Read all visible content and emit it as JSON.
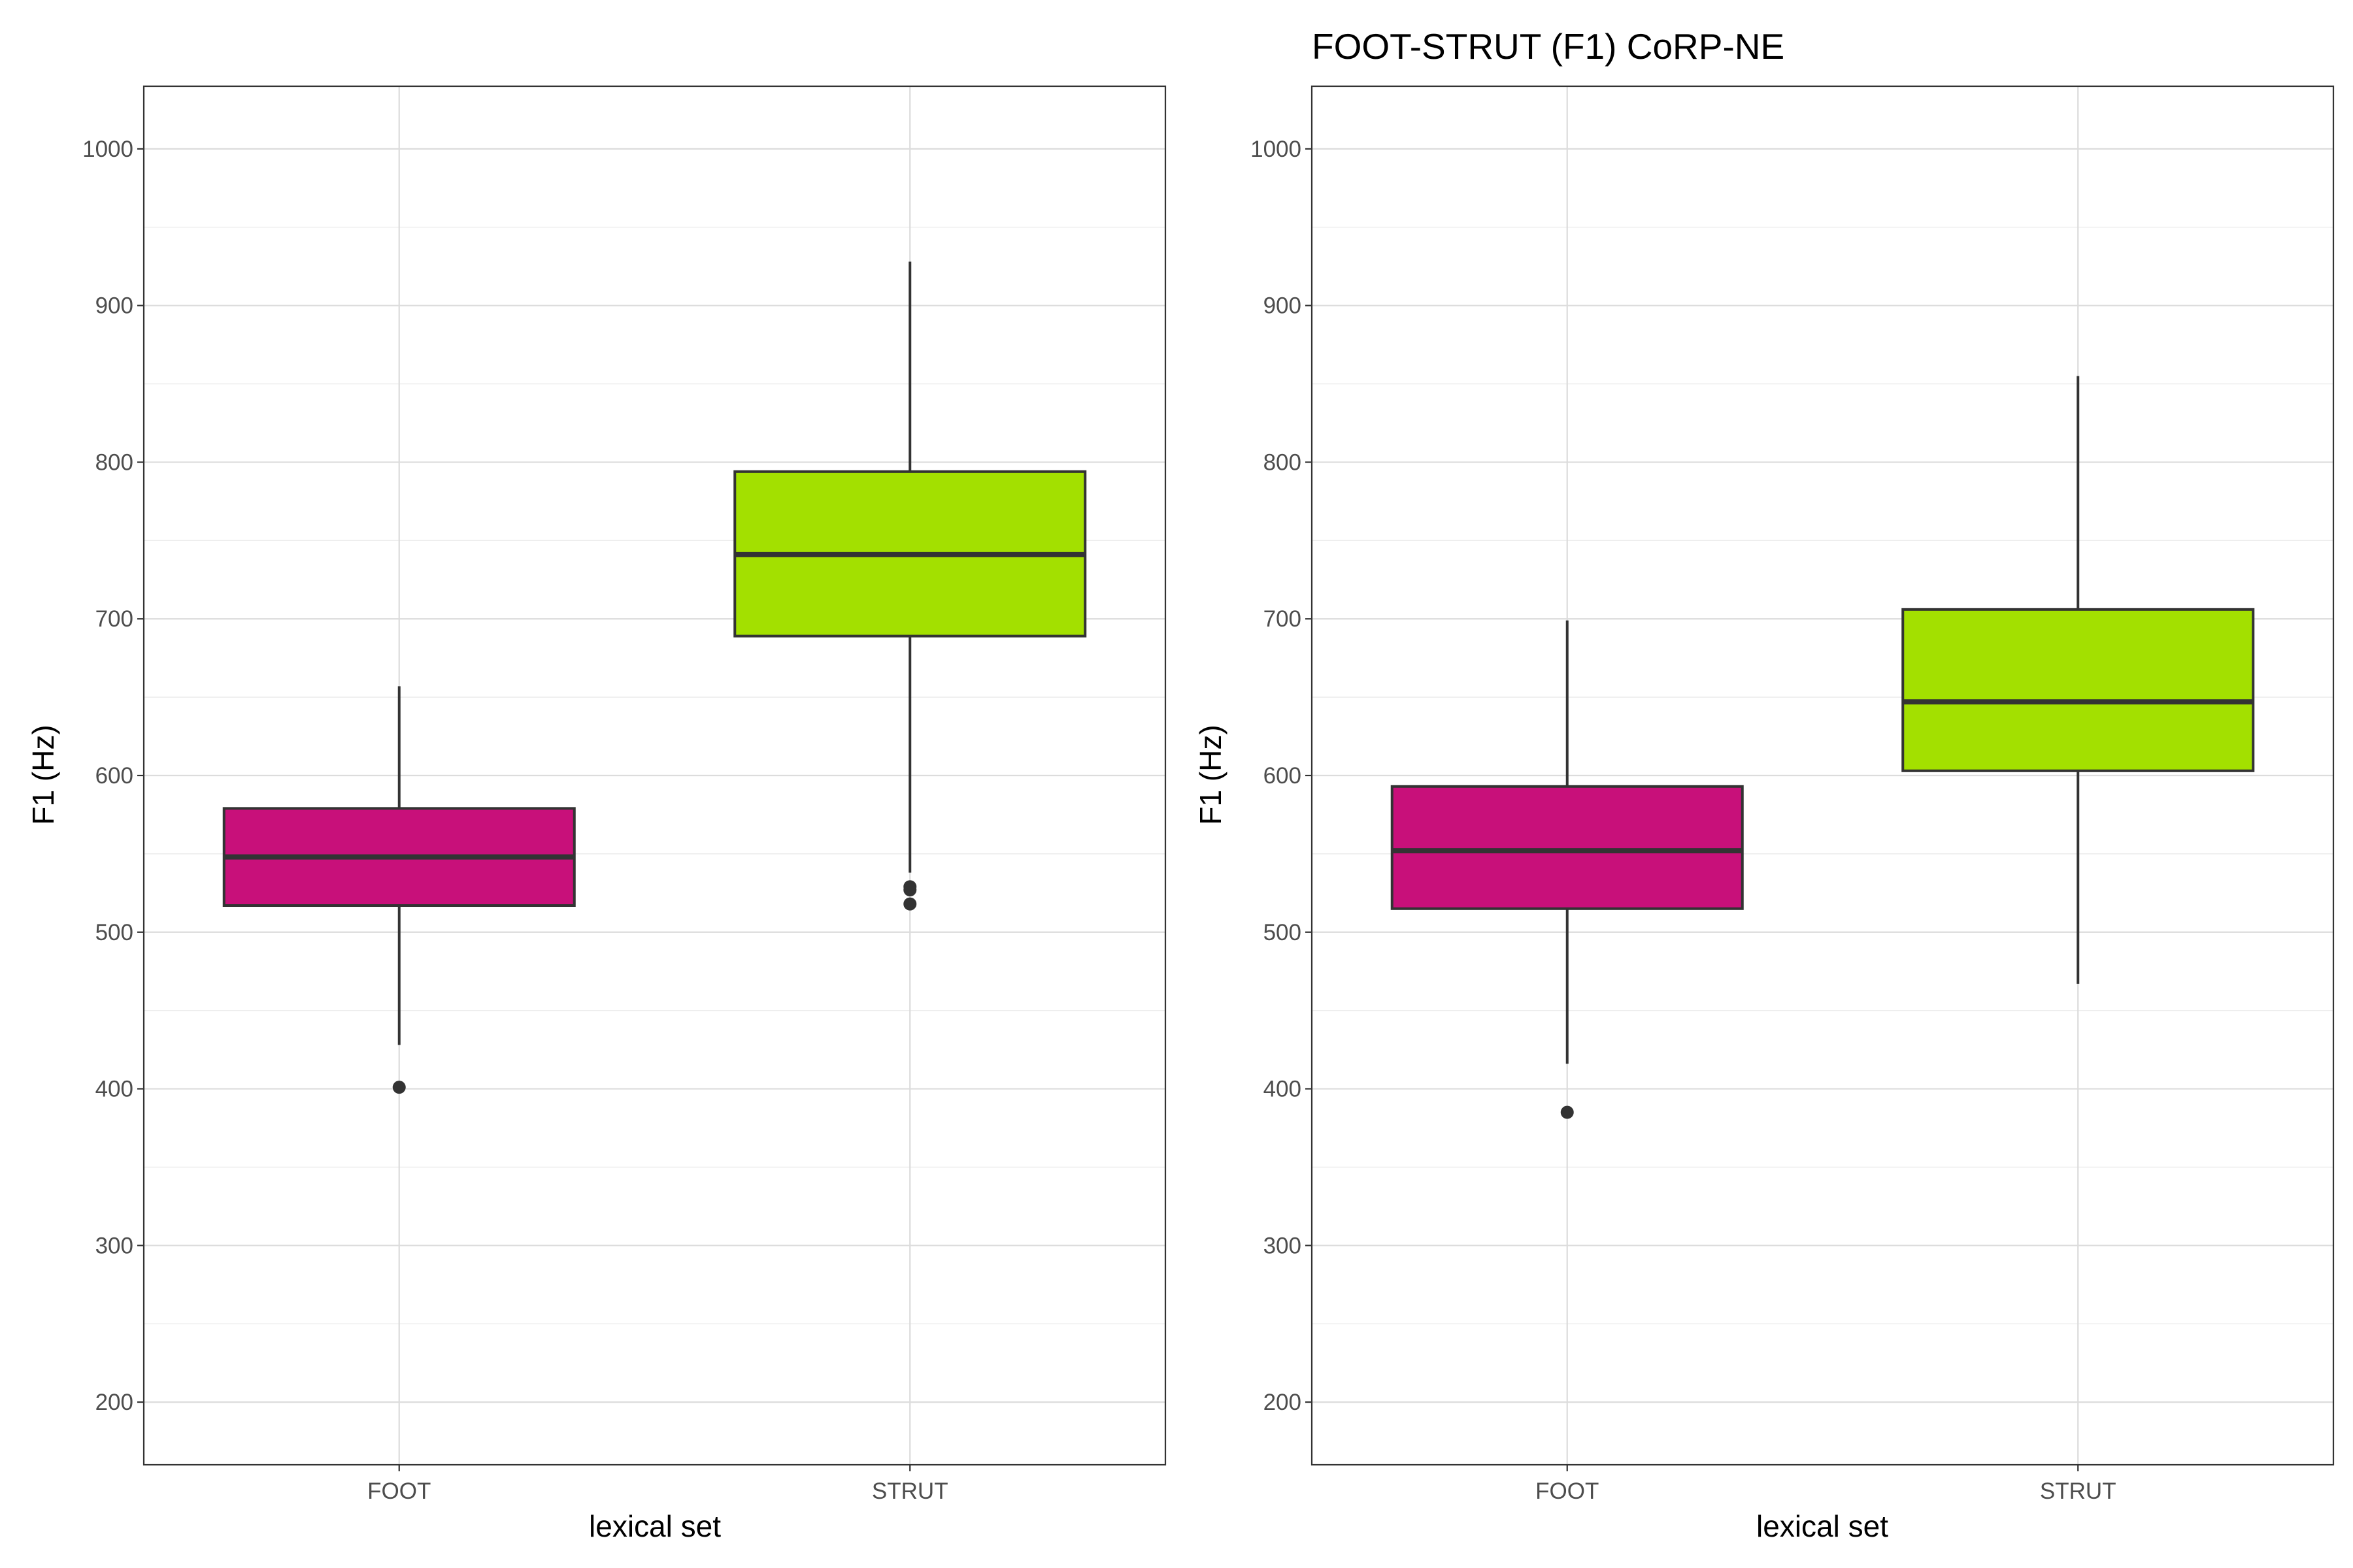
{
  "chart_data": [
    {
      "type": "boxplot",
      "title": "",
      "xlabel": "lexical set",
      "ylabel": "F1 (Hz)",
      "ylim": [
        160,
        1040
      ],
      "y_ticks": [
        200,
        300,
        400,
        500,
        600,
        700,
        800,
        900,
        1000
      ],
      "y_tick_labels": [
        "200",
        "300",
        "400",
        "500",
        "600",
        "700",
        "800",
        "900",
        "1000"
      ],
      "grid": true,
      "categories": [
        "FOOT",
        "STRUT"
      ],
      "boxes": [
        {
          "category": "FOOT",
          "fill": "#c8107a",
          "whisker_low": 428,
          "q1": 517,
          "median": 548,
          "q3": 579,
          "whisker_high": 657,
          "outliers": [
            401
          ]
        },
        {
          "category": "STRUT",
          "fill": "#a3e000",
          "whisker_low": 538,
          "q1": 689,
          "median": 741,
          "q3": 794,
          "whisker_high": 928,
          "outliers": [
            529,
            527,
            518
          ]
        }
      ]
    },
    {
      "type": "boxplot",
      "title": "FOOT-STRUT (F1) CoRP-NE",
      "xlabel": "lexical set",
      "ylabel": "F1 (Hz)",
      "ylim": [
        160,
        1040
      ],
      "y_ticks": [
        200,
        300,
        400,
        500,
        600,
        700,
        800,
        900,
        1000
      ],
      "y_tick_labels": [
        "200",
        "300",
        "400",
        "500",
        "600",
        "700",
        "800",
        "900",
        "1000"
      ],
      "grid": true,
      "categories": [
        "FOOT",
        "STRUT"
      ],
      "boxes": [
        {
          "category": "FOOT",
          "fill": "#c8107a",
          "whisker_low": 416,
          "q1": 515,
          "median": 552,
          "q3": 593,
          "whisker_high": 699,
          "outliers": [
            385
          ]
        },
        {
          "category": "STRUT",
          "fill": "#a3e000",
          "whisker_low": 467,
          "q1": 603,
          "median": 647,
          "q3": 706,
          "whisker_high": 855,
          "outliers": []
        }
      ]
    }
  ]
}
